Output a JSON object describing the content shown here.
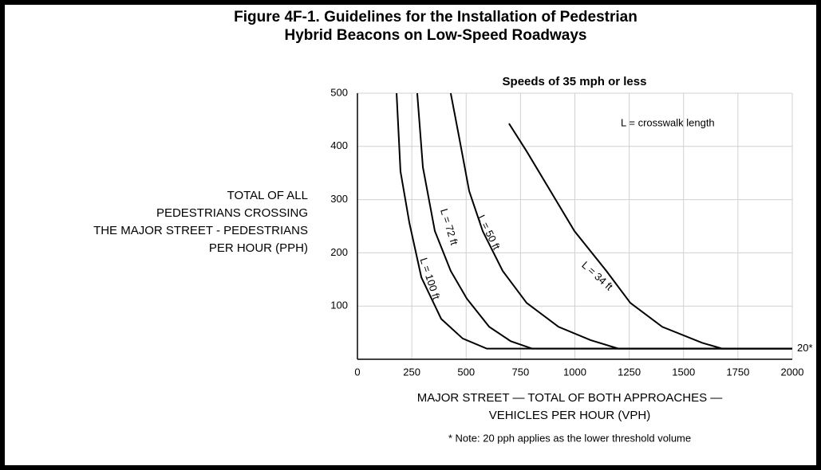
{
  "chart_data": {
    "type": "line",
    "title": [
      "Figure 4F-1.  Guidelines for the Installation of Pedestrian",
      "Hybrid Beacons on Low-Speed Roadways"
    ],
    "subtitle": "Speeds of 35 mph or less",
    "ylabel": [
      "TOTAL OF ALL",
      "PEDESTRIANS CROSSING",
      "THE MAJOR STREET - PEDESTRIANS",
      "PER HOUR (PPH)"
    ],
    "xlabel": [
      "MAJOR STREET — TOTAL OF BOTH APPROACHES —",
      "VEHICLES PER HOUR (VPH)"
    ],
    "note": "* Note: 20 pph applies as the lower threshold volume",
    "annotations": [
      "L = crosswalk length",
      "20*"
    ],
    "xlim": [
      0,
      2000
    ],
    "xticks": [
      0,
      250,
      500,
      750,
      1000,
      1250,
      1500,
      1750,
      2000
    ],
    "ylim": [
      0,
      500
    ],
    "yticks": [
      100,
      200,
      300,
      400,
      500
    ],
    "grid": true,
    "series": [
      {
        "name": "L = 100 ft",
        "color": "#000000",
        "x": [
          180,
          198,
          239,
          294,
          385,
          484,
          595,
          2000
        ],
        "values": [
          500,
          353,
          256,
          154,
          76,
          39,
          20,
          20
        ]
      },
      {
        "name": "L = 72 ft",
        "color": "#000000",
        "x": [
          275,
          301,
          356,
          429,
          503,
          606,
          705,
          804,
          2000
        ],
        "values": [
          500,
          361,
          241,
          166,
          114,
          61,
          34,
          20,
          20
        ]
      },
      {
        "name": "L = 50 ft",
        "color": "#000000",
        "x": [
          429,
          466,
          514,
          576,
          668,
          778,
          925,
          1072,
          1200,
          2000
        ],
        "values": [
          500,
          421,
          316,
          241,
          166,
          106,
          61,
          36,
          20,
          20
        ]
      },
      {
        "name": "L = 34 ft",
        "color": "#000000",
        "x": [
          697,
          778,
          888,
          998,
          1145,
          1255,
          1402,
          1585,
          1677,
          2000
        ],
        "values": [
          443,
          391,
          316,
          241,
          166,
          106,
          61,
          31,
          20,
          20
        ]
      }
    ]
  }
}
